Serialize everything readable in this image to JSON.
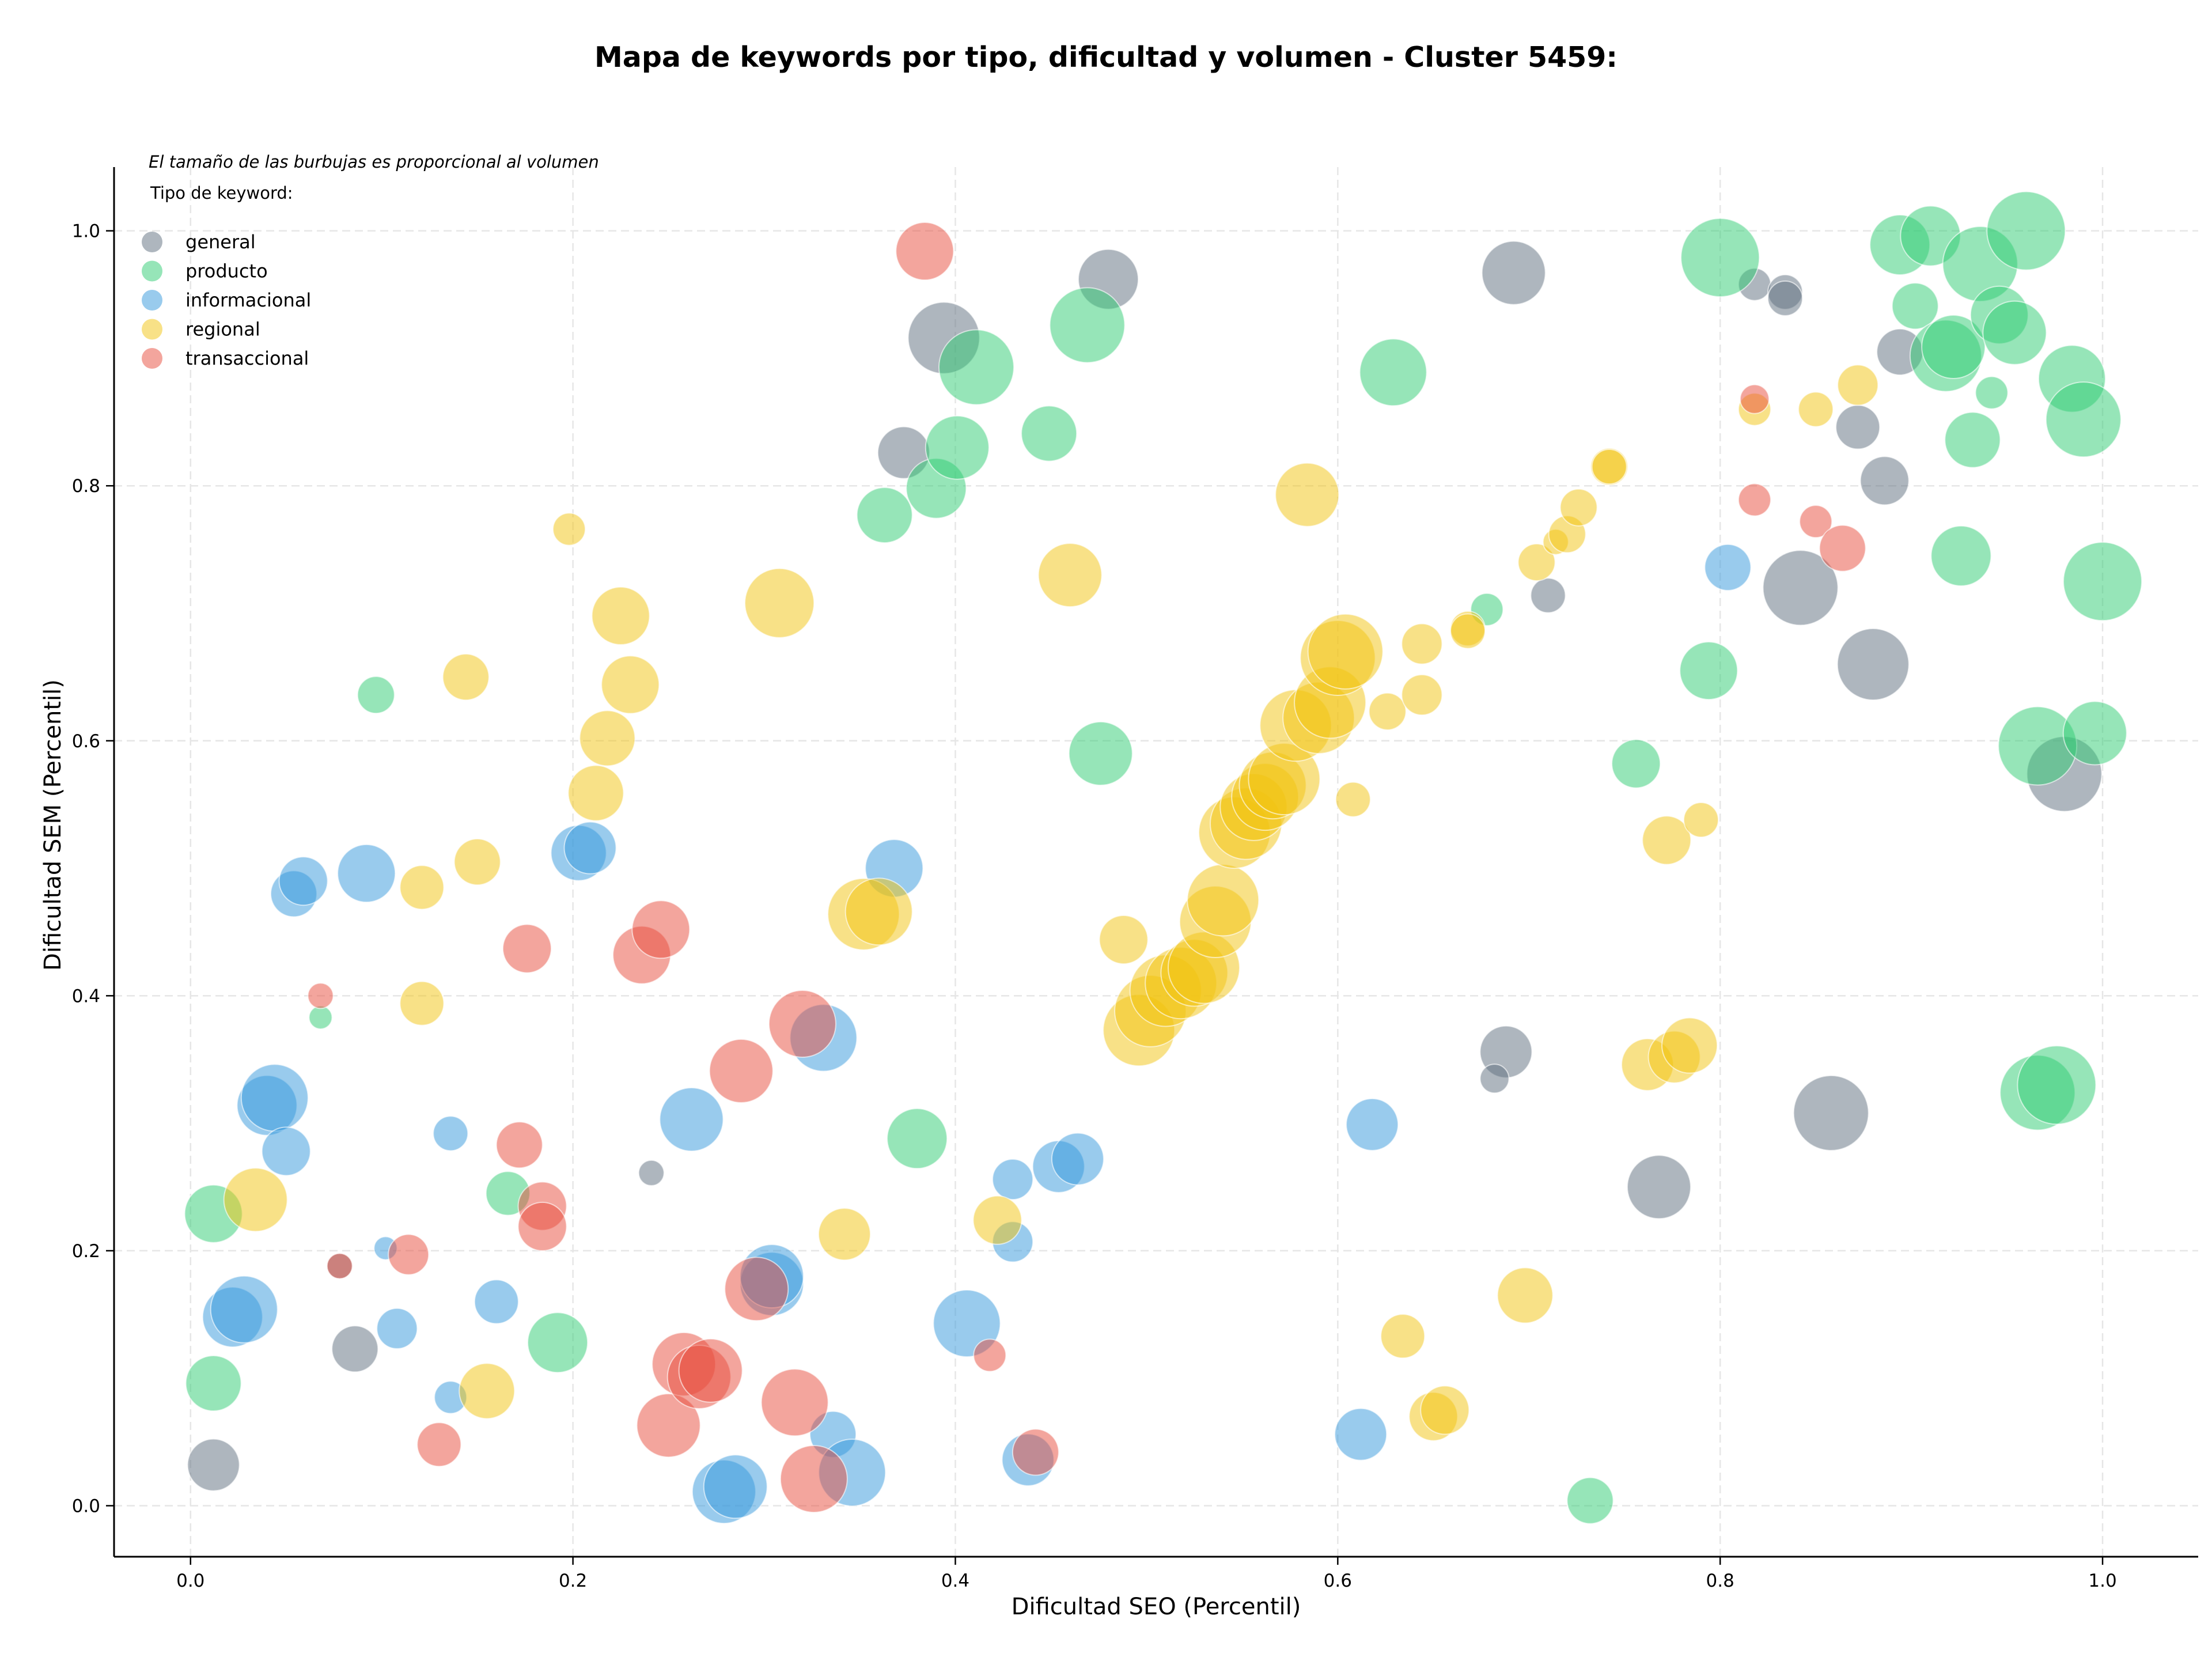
{
  "chart_data": {
    "type": "scatter",
    "title": "Mapa de keywords por tipo, dificultad y volumen - Cluster 5459:",
    "xlabel": "Dificultad SEO (Percentil)",
    "ylabel": "Dificultad SEM (Percentil)",
    "xlim": [
      -0.04,
      1.05
    ],
    "ylim": [
      -0.04,
      1.05
    ],
    "xticks": [
      "0.0",
      "0.2",
      "0.4",
      "0.6",
      "0.8",
      "1.0"
    ],
    "yticks": [
      "0.0",
      "0.2",
      "0.4",
      "0.6",
      "0.8",
      "1.0"
    ],
    "grid": true,
    "legend_placement": "top-left",
    "legend_note": "El tamaño de las burbujas es proporcional al volumen",
    "legend_title": "Tipo de keyword:",
    "series": [
      {
        "name": "general",
        "color": "#5d6d7e",
        "points": [
          [
            0.012,
            0.032,
            45
          ],
          [
            0.086,
            0.123,
            40
          ],
          [
            0.078,
            0.188,
            22
          ],
          [
            0.241,
            0.261,
            22
          ],
          [
            0.373,
            0.826,
            45
          ],
          [
            0.394,
            0.916,
            62
          ],
          [
            0.48,
            0.962,
            52
          ],
          [
            0.692,
            0.967,
            55
          ],
          [
            0.71,
            0.714,
            30
          ],
          [
            0.688,
            0.356,
            45
          ],
          [
            0.682,
            0.335,
            25
          ],
          [
            0.768,
            0.25,
            55
          ],
          [
            0.818,
            0.958,
            28
          ],
          [
            0.834,
            0.952,
            30
          ],
          [
            0.834,
            0.947,
            30
          ],
          [
            0.842,
            0.72,
            65
          ],
          [
            0.858,
            0.308,
            65
          ],
          [
            0.872,
            0.846,
            38
          ],
          [
            0.88,
            0.66,
            62
          ],
          [
            0.886,
            0.804,
            42
          ],
          [
            0.894,
            0.905,
            40
          ],
          [
            0.98,
            0.574,
            65
          ]
        ]
      },
      {
        "name": "producto",
        "color": "#2ecc71",
        "points": [
          [
            0.012,
            0.229,
            50
          ],
          [
            0.012,
            0.096,
            48
          ],
          [
            0.068,
            0.383,
            20
          ],
          [
            0.097,
            0.636,
            32
          ],
          [
            0.166,
            0.245,
            38
          ],
          [
            0.192,
            0.128,
            52
          ],
          [
            0.363,
            0.777,
            48
          ],
          [
            0.38,
            0.288,
            52
          ],
          [
            0.39,
            0.798,
            52
          ],
          [
            0.401,
            0.83,
            55
          ],
          [
            0.411,
            0.893,
            65
          ],
          [
            0.449,
            0.841,
            48
          ],
          [
            0.469,
            0.926,
            65
          ],
          [
            0.476,
            0.59,
            55
          ],
          [
            0.629,
            0.889,
            58
          ],
          [
            0.678,
            0.703,
            28
          ],
          [
            0.732,
            0.004,
            40
          ],
          [
            0.756,
            0.582,
            42
          ],
          [
            0.794,
            0.655,
            50
          ],
          [
            0.8,
            0.979,
            68
          ],
          [
            0.894,
            0.989,
            52
          ],
          [
            0.91,
            0.996,
            52
          ],
          [
            0.902,
            0.941,
            40
          ],
          [
            0.918,
            0.902,
            62
          ],
          [
            0.922,
            0.909,
            55
          ],
          [
            0.926,
            0.745,
            52
          ],
          [
            0.936,
            0.974,
            65
          ],
          [
            0.932,
            0.836,
            48
          ],
          [
            0.942,
            0.873,
            28
          ],
          [
            0.946,
            0.934,
            50
          ],
          [
            0.954,
            0.92,
            55
          ],
          [
            0.96,
            1.0,
            68
          ],
          [
            0.966,
            0.596,
            68
          ],
          [
            0.966,
            0.324,
            65
          ],
          [
            0.976,
            0.33,
            68
          ],
          [
            0.984,
            0.884,
            58
          ],
          [
            0.99,
            0.852,
            65
          ],
          [
            0.996,
            0.606,
            55
          ],
          [
            1.0,
            0.725,
            68
          ]
        ]
      },
      {
        "name": "informacional",
        "color": "#3498db",
        "points": [
          [
            0.022,
            0.148,
            52
          ],
          [
            0.028,
            0.154,
            58
          ],
          [
            0.04,
            0.314,
            52
          ],
          [
            0.044,
            0.32,
            58
          ],
          [
            0.05,
            0.278,
            42
          ],
          [
            0.054,
            0.48,
            40
          ],
          [
            0.059,
            0.49,
            42
          ],
          [
            0.092,
            0.496,
            50
          ],
          [
            0.102,
            0.202,
            20
          ],
          [
            0.108,
            0.139,
            35
          ],
          [
            0.136,
            0.292,
            30
          ],
          [
            0.136,
            0.085,
            28
          ],
          [
            0.16,
            0.16,
            38
          ],
          [
            0.203,
            0.512,
            48
          ],
          [
            0.209,
            0.516,
            45
          ],
          [
            0.262,
            0.303,
            55
          ],
          [
            0.279,
            0.011,
            55
          ],
          [
            0.285,
            0.015,
            55
          ],
          [
            0.304,
            0.174,
            55
          ],
          [
            0.304,
            0.18,
            55
          ],
          [
            0.331,
            0.367,
            58
          ],
          [
            0.336,
            0.056,
            40
          ],
          [
            0.346,
            0.026,
            58
          ],
          [
            0.368,
            0.5,
            50
          ],
          [
            0.406,
            0.143,
            58
          ],
          [
            0.43,
            0.256,
            35
          ],
          [
            0.43,
            0.207,
            35
          ],
          [
            0.438,
            0.036,
            45
          ],
          [
            0.454,
            0.266,
            45
          ],
          [
            0.464,
            0.272,
            45
          ],
          [
            0.612,
            0.056,
            45
          ],
          [
            0.618,
            0.299,
            45
          ],
          [
            0.804,
            0.736,
            40
          ]
        ]
      },
      {
        "name": "regional",
        "color": "#f1c40f",
        "points": [
          [
            0.034,
            0.24,
            55
          ],
          [
            0.121,
            0.394,
            38
          ],
          [
            0.121,
            0.485,
            38
          ],
          [
            0.144,
            0.65,
            40
          ],
          [
            0.15,
            0.505,
            40
          ],
          [
            0.155,
            0.09,
            48
          ],
          [
            0.198,
            0.766,
            28
          ],
          [
            0.212,
            0.559,
            48
          ],
          [
            0.218,
            0.602,
            48
          ],
          [
            0.225,
            0.698,
            50
          ],
          [
            0.23,
            0.644,
            50
          ],
          [
            0.308,
            0.708,
            60
          ],
          [
            0.342,
            0.213,
            45
          ],
          [
            0.352,
            0.464,
            62
          ],
          [
            0.36,
            0.466,
            58
          ],
          [
            0.422,
            0.224,
            42
          ],
          [
            0.46,
            0.73,
            55
          ],
          [
            0.488,
            0.444,
            42
          ],
          [
            0.496,
            0.373,
            62
          ],
          [
            0.502,
            0.388,
            62
          ],
          [
            0.51,
            0.404,
            62
          ],
          [
            0.518,
            0.41,
            62
          ],
          [
            0.525,
            0.418,
            58
          ],
          [
            0.53,
            0.422,
            62
          ],
          [
            0.536,
            0.458,
            62
          ],
          [
            0.54,
            0.475,
            62
          ],
          [
            0.546,
            0.528,
            62
          ],
          [
            0.552,
            0.535,
            62
          ],
          [
            0.556,
            0.548,
            58
          ],
          [
            0.562,
            0.556,
            58
          ],
          [
            0.566,
            0.565,
            58
          ],
          [
            0.572,
            0.57,
            62
          ],
          [
            0.578,
            0.612,
            62
          ],
          [
            0.584,
            0.793,
            55
          ],
          [
            0.59,
            0.618,
            62
          ],
          [
            0.596,
            0.63,
            62
          ],
          [
            0.6,
            0.665,
            65
          ],
          [
            0.604,
            0.67,
            65
          ],
          [
            0.608,
            0.554,
            30
          ],
          [
            0.626,
            0.623,
            32
          ],
          [
            0.644,
            0.636,
            35
          ],
          [
            0.644,
            0.676,
            35
          ],
          [
            0.634,
            0.133,
            38
          ],
          [
            0.65,
            0.07,
            42
          ],
          [
            0.656,
            0.075,
            42
          ],
          [
            0.668,
            0.688,
            30
          ],
          [
            0.668,
            0.686,
            30
          ],
          [
            0.698,
            0.165,
            48
          ],
          [
            0.704,
            0.74,
            32
          ],
          [
            0.714,
            0.756,
            22
          ],
          [
            0.72,
            0.762,
            32
          ],
          [
            0.726,
            0.783,
            32
          ],
          [
            0.742,
            0.815,
            32
          ],
          [
            0.742,
            0.815,
            30
          ],
          [
            0.762,
            0.346,
            45
          ],
          [
            0.772,
            0.522,
            42
          ],
          [
            0.776,
            0.352,
            45
          ],
          [
            0.784,
            0.361,
            48
          ],
          [
            0.79,
            0.538,
            30
          ],
          [
            0.818,
            0.86,
            28
          ],
          [
            0.85,
            0.86,
            30
          ],
          [
            0.872,
            0.879,
            35
          ]
        ]
      },
      {
        "name": "transaccional",
        "color": "#e74c3c",
        "points": [
          [
            0.068,
            0.4,
            22
          ],
          [
            0.078,
            0.188,
            22
          ],
          [
            0.114,
            0.197,
            35
          ],
          [
            0.13,
            0.048,
            38
          ],
          [
            0.172,
            0.283,
            40
          ],
          [
            0.176,
            0.437,
            42
          ],
          [
            0.184,
            0.235,
            42
          ],
          [
            0.184,
            0.219,
            42
          ],
          [
            0.236,
            0.432,
            50
          ],
          [
            0.246,
            0.452,
            50
          ],
          [
            0.25,
            0.063,
            55
          ],
          [
            0.258,
            0.111,
            55
          ],
          [
            0.266,
            0.101,
            55
          ],
          [
            0.272,
            0.106,
            55
          ],
          [
            0.288,
            0.341,
            55
          ],
          [
            0.296,
            0.17,
            55
          ],
          [
            0.316,
            0.081,
            58
          ],
          [
            0.32,
            0.378,
            58
          ],
          [
            0.326,
            0.021,
            58
          ],
          [
            0.384,
            0.984,
            50
          ],
          [
            0.418,
            0.118,
            28
          ],
          [
            0.442,
            0.042,
            40
          ],
          [
            0.818,
            0.868,
            25
          ],
          [
            0.818,
            0.789,
            28
          ],
          [
            0.85,
            0.772,
            28
          ],
          [
            0.864,
            0.751,
            40
          ]
        ]
      }
    ]
  }
}
